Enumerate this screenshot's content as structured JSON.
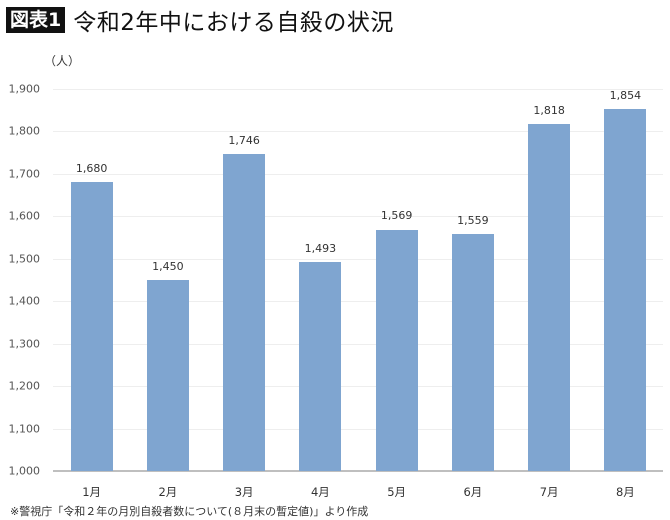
{
  "header": {
    "badge": "図表1",
    "title": "令和2年中における自殺の状況"
  },
  "unit_label": "（人）",
  "source_note": "※警視庁「令和２年の月別自殺者数について(８月末の暫定値)」より作成",
  "colors": {
    "bar": "#7fa5d0",
    "badge_bg": "#111111",
    "gridline": "#eeeeee",
    "axis": "#bfbfbf"
  },
  "chart_data": {
    "type": "bar",
    "title": "令和2年中における自殺の状況",
    "xlabel": "",
    "ylabel": "（人）",
    "categories": [
      "1月",
      "2月",
      "3月",
      "4月",
      "5月",
      "6月",
      "7月",
      "8月"
    ],
    "values": [
      1680,
      1450,
      1746,
      1493,
      1569,
      1559,
      1818,
      1854
    ],
    "value_labels": [
      "1,680",
      "1,450",
      "1,746",
      "1,493",
      "1,569",
      "1,559",
      "1,818",
      "1,854"
    ],
    "ylim": [
      1000,
      1900
    ],
    "yticks": [
      1000,
      1100,
      1200,
      1300,
      1400,
      1500,
      1600,
      1700,
      1800,
      1900
    ],
    "ytick_labels": [
      "1,000",
      "1,100",
      "1,200",
      "1,300",
      "1,400",
      "1,500",
      "1,600",
      "1,700",
      "1,800",
      "1,900"
    ],
    "grid": true,
    "legend": null
  }
}
